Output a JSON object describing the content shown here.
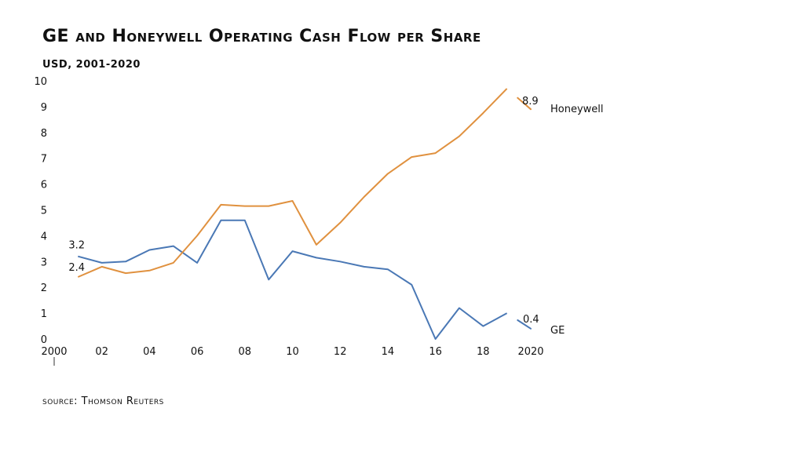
{
  "header": {
    "title": "GE and Honeywell Operating Cash Flow per Share",
    "subtitle": "USD, 2001-2020"
  },
  "footer": {
    "source": "source: Thomson Reuters"
  },
  "chart_data": {
    "type": "line",
    "title": "GE and Honeywell Operating Cash Flow per Share",
    "subtitle": "USD, 2001-2020",
    "xlabel": "",
    "ylabel": "",
    "xlim": [
      2000,
      2020
    ],
    "ylim": [
      0,
      10
    ],
    "x_tick_values": [
      2000,
      2002,
      2004,
      2006,
      2008,
      2010,
      2012,
      2014,
      2016,
      2018,
      2020
    ],
    "x_tick_labels": [
      "2000",
      "02",
      "04",
      "06",
      "08",
      "10",
      "12",
      "14",
      "16",
      "18",
      "2020"
    ],
    "y_ticks": [
      0,
      1,
      2,
      3,
      4,
      5,
      6,
      7,
      8,
      9,
      10
    ],
    "grid": false,
    "legend": "direct labels at line ends",
    "x": [
      2001,
      2002,
      2003,
      2004,
      2005,
      2006,
      2007,
      2008,
      2009,
      2010,
      2011,
      2012,
      2013,
      2014,
      2015,
      2016,
      2017,
      2018,
      2019,
      2020
    ],
    "series": [
      {
        "name": "GE",
        "color": "#4a78b5",
        "values": [
          3.2,
          2.95,
          3.0,
          3.45,
          3.6,
          2.95,
          4.6,
          4.6,
          2.3,
          3.4,
          3.15,
          3.0,
          2.8,
          2.7,
          2.1,
          0.0,
          1.2,
          0.5,
          1.0,
          0.4
        ],
        "start_label": "3.2",
        "end_label": "0.4"
      },
      {
        "name": "Honeywell",
        "color": "#e0913f",
        "values": [
          2.4,
          2.8,
          2.55,
          2.65,
          2.95,
          4.0,
          5.2,
          5.15,
          5.15,
          5.35,
          3.65,
          4.5,
          5.5,
          6.4,
          7.05,
          7.2,
          7.85,
          8.75,
          9.7,
          8.9
        ],
        "start_label": "2.4",
        "end_label": "8.9"
      }
    ]
  }
}
